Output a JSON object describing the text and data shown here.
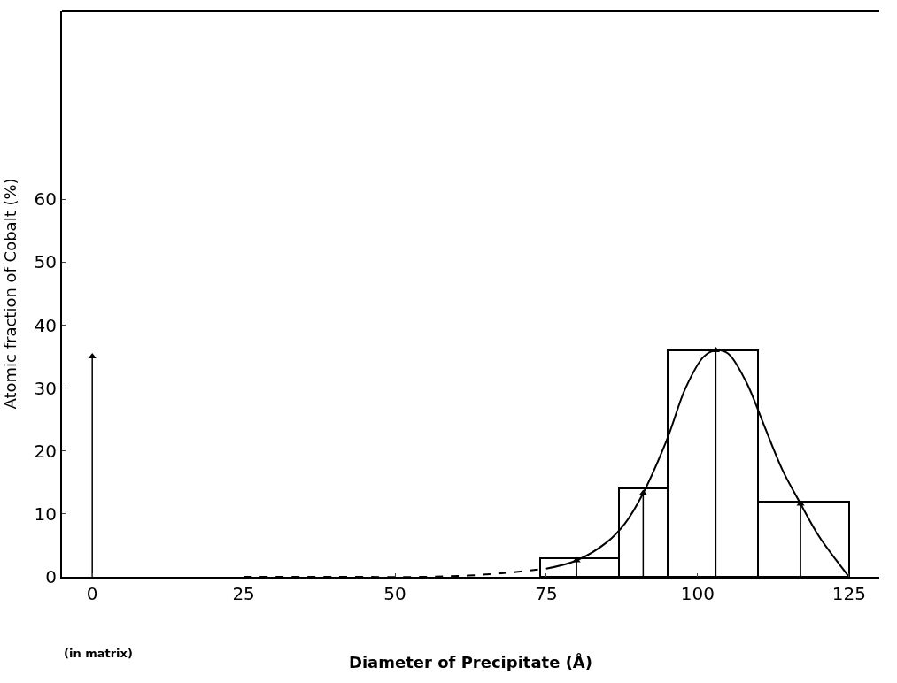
{
  "chart_data": {
    "type": "histogram",
    "xlabel": "Diameter of Precipitate (Å)",
    "ylabel": "Atomic fraction of Cobalt (%)",
    "annotations": [
      "(in matrix)"
    ],
    "bins": [
      74,
      87,
      95,
      110,
      125
    ],
    "values": [
      3,
      14,
      36,
      12
    ],
    "color": "#000000",
    "series": [
      {
        "type": "line",
        "color": "#000000",
        "line_style": "dashed",
        "x": [
          25,
          40,
          55,
          62,
          68,
          75
        ],
        "values": [
          0,
          0,
          0,
          0.2,
          0.6,
          1.3
        ]
      },
      {
        "type": "line",
        "color": "#000000",
        "line_style": "solid",
        "x": [
          75,
          80,
          85,
          88,
          91,
          95,
          98,
          101,
          103,
          105,
          108,
          111,
          114,
          117,
          120,
          123,
          125
        ],
        "values": [
          1.3,
          2.6,
          5.5,
          8.5,
          13.3,
          22,
          30,
          35,
          36,
          35.5,
          31,
          24,
          17,
          11.6,
          6.5,
          2.5,
          0
        ]
      },
      {
        "type": "lollipop",
        "color": "#000000",
        "marker": "triangle",
        "x": [
          0,
          80,
          91,
          103,
          117
        ],
        "values": [
          35,
          2.6,
          13.3,
          36,
          11.6
        ]
      }
    ],
    "xlim": [
      -5,
      130
    ],
    "xticks": [
      0,
      25,
      50,
      75,
      100,
      125
    ],
    "ylim": [
      0,
      90
    ],
    "yticks": [
      0,
      10,
      20,
      30,
      40,
      50,
      60
    ]
  }
}
